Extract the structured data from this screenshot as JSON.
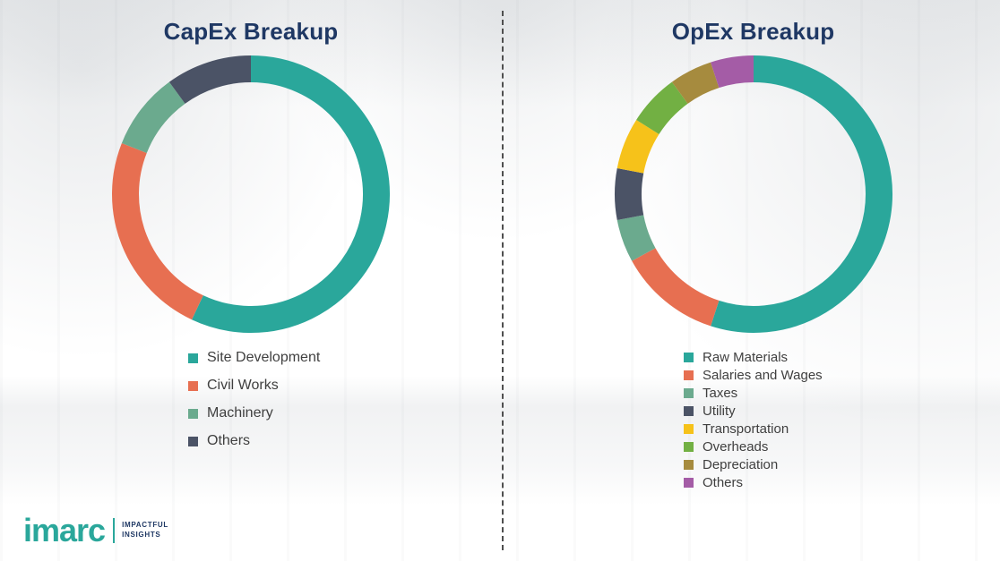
{
  "chart_data": [
    {
      "type": "pie",
      "variant": "donut",
      "title": "CapEx Breakup",
      "legend_position": "bottom-left",
      "segments": [
        {
          "label": "Site Development",
          "value": 57,
          "color": "#2aa79b"
        },
        {
          "label": "Civil Works",
          "value": 24,
          "color": "#e76f51"
        },
        {
          "label": "Machinery",
          "value": 9,
          "color": "#6baa8e"
        },
        {
          "label": "Others",
          "value": 10,
          "color": "#4b5366"
        }
      ]
    },
    {
      "type": "pie",
      "variant": "donut",
      "title": "OpEx Breakup",
      "legend_position": "bottom-left",
      "segments": [
        {
          "label": "Raw Materials",
          "value": 55,
          "color": "#2aa79b"
        },
        {
          "label": "Salaries and Wages",
          "value": 12,
          "color": "#e76f51"
        },
        {
          "label": "Taxes",
          "value": 5,
          "color": "#6baa8e"
        },
        {
          "label": "Utility",
          "value": 6,
          "color": "#4b5366"
        },
        {
          "label": "Transportation",
          "value": 6,
          "color": "#f6c21a"
        },
        {
          "label": "Overheads",
          "value": 6,
          "color": "#72b043"
        },
        {
          "label": "Depreciation",
          "value": 5,
          "color": "#a68b3e"
        },
        {
          "label": "Others",
          "value": 5,
          "color": "#a45ca6"
        }
      ]
    }
  ],
  "logo": {
    "wordmark": "imarc",
    "tagline": [
      "IMPACTFUL",
      "INSIGHTS"
    ]
  },
  "colors": {
    "title_text": "#1f3864",
    "legend_text": "#3f3f3f",
    "brand_teal": "#2aa79b",
    "divider": "#4f4f4f"
  }
}
